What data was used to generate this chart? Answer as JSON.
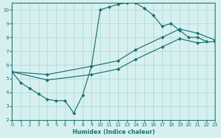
{
  "xlabel": "Humidex (Indice chaleur)",
  "ylabel": "",
  "bg_color": "#d6f0f0",
  "line_color": "#1a7070",
  "grid_color": "#b0d8d8",
  "xlim": [
    0,
    23
  ],
  "ylim": [
    2,
    10.5
  ],
  "xticks": [
    0,
    1,
    2,
    3,
    4,
    5,
    6,
    7,
    8,
    9,
    10,
    11,
    12,
    13,
    14,
    15,
    16,
    17,
    18,
    19,
    20,
    21,
    22,
    23
  ],
  "yticks": [
    2,
    3,
    4,
    5,
    6,
    7,
    8,
    9,
    10
  ],
  "curve1_x": [
    0,
    1,
    2,
    3,
    4,
    5,
    6,
    7,
    8,
    9,
    10,
    11,
    12,
    13,
    14,
    15,
    16,
    17,
    18,
    19,
    20,
    21,
    22
  ],
  "curve1_y": [
    5.5,
    4.7,
    4.3,
    3.9,
    3.5,
    3.4,
    3.4,
    2.5,
    3.8,
    5.9,
    10.0,
    10.2,
    10.4,
    10.5,
    10.5,
    10.1,
    9.6,
    8.8,
    9.0,
    8.5,
    8.0,
    8.0,
    7.7
  ],
  "curve2_x": [
    0,
    4,
    9,
    12,
    14,
    17,
    19,
    21,
    23
  ],
  "curve2_y": [
    5.5,
    5.3,
    5.9,
    6.3,
    7.1,
    8.0,
    8.6,
    8.3,
    7.8
  ],
  "curve3_x": [
    0,
    4,
    9,
    12,
    14,
    17,
    19,
    21,
    23
  ],
  "curve3_y": [
    5.5,
    4.9,
    5.3,
    5.7,
    6.4,
    7.3,
    7.9,
    7.6,
    7.7
  ]
}
